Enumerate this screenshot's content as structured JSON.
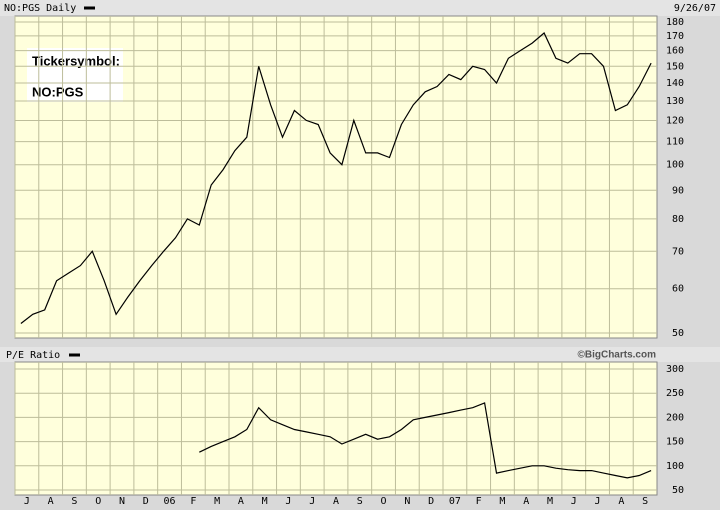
{
  "chart_data": [
    {
      "type": "line",
      "title": "NO:PGS Daily",
      "date": "9/26/07",
      "annotations": [
        "Tickersymbol:",
        "NO:PGS"
      ],
      "log": true,
      "grid": true,
      "ylim": [
        50,
        180
      ],
      "yticks": [
        50,
        60,
        70,
        80,
        90,
        100,
        110,
        120,
        130,
        140,
        150,
        160,
        170,
        180
      ],
      "series": [
        {
          "name": "NO:PGS Daily",
          "color": "#000000",
          "values": [
            52,
            54,
            55,
            62,
            64,
            66,
            70,
            62,
            54,
            58,
            62,
            66,
            70,
            74,
            80,
            78,
            92,
            98,
            106,
            112,
            150,
            128,
            112,
            125,
            120,
            118,
            105,
            100,
            120,
            105,
            105,
            103,
            118,
            128,
            135,
            138,
            145,
            142,
            150,
            148,
            140,
            155,
            160,
            165,
            172,
            155,
            152,
            158,
            158,
            150,
            125,
            128,
            138,
            152
          ]
        }
      ]
    },
    {
      "type": "line",
      "title": "P/E Ratio",
      "source": "©BigCharts.com",
      "grid": true,
      "ylim": [
        50,
        300
      ],
      "yticks": [
        50,
        100,
        150,
        200,
        250,
        300
      ],
      "categories": [
        "J",
        null,
        "A",
        null,
        "S",
        null,
        "O",
        null,
        "N",
        null,
        "D",
        null,
        "06",
        null,
        "F",
        null,
        "M",
        null,
        "A",
        null,
        "M",
        null,
        "J",
        null,
        "J",
        null,
        "A",
        null,
        "S",
        null,
        "O",
        null,
        "N",
        null,
        "D",
        null,
        "07",
        null,
        "F",
        null,
        "M",
        null,
        "A",
        null,
        "M",
        null,
        "J",
        null,
        "J",
        null,
        "A",
        null,
        "S",
        null
      ],
      "series": [
        {
          "name": "P/E Ratio",
          "color": "#000000",
          "values": [
            null,
            null,
            null,
            null,
            null,
            null,
            null,
            null,
            null,
            null,
            null,
            null,
            null,
            null,
            null,
            128,
            140,
            150,
            160,
            175,
            220,
            195,
            185,
            175,
            170,
            165,
            160,
            145,
            155,
            165,
            155,
            160,
            175,
            195,
            200,
            205,
            210,
            215,
            220,
            230,
            85,
            90,
            95,
            100,
            100,
            95,
            92,
            90,
            90,
            85,
            80,
            75,
            80,
            90
          ]
        }
      ]
    }
  ]
}
